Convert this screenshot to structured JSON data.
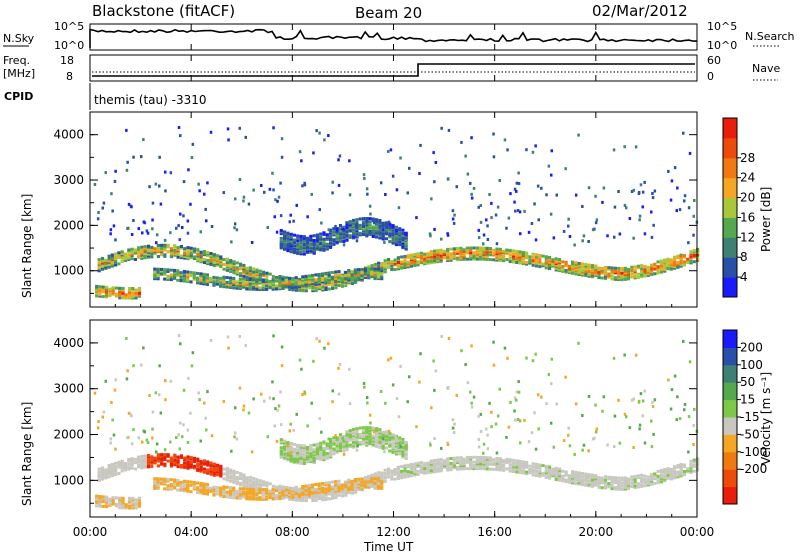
{
  "header": {
    "station": "Blackstone (fitACF)",
    "beam": "Beam 20",
    "date": "02/Mar/2012"
  },
  "top_panels": {
    "nsky_label": "N.Sky",
    "nsearch_label": "N.Search",
    "noise_ticks": [
      "10^5",
      "10^0"
    ],
    "freq_label": "Freq.",
    "freq_unit": "[MHz]",
    "freq_ticks": [
      "18",
      "8"
    ],
    "nave_label": "Nave",
    "nave_ticks": [
      "60",
      "0"
    ],
    "cpid_label": "CPID",
    "cpid_value": "themis (tau) -3310"
  },
  "colors": {
    "power_scale": [
      "#1a1aff",
      "#2a4fa8",
      "#3f7f74",
      "#56a84e",
      "#a8c83a",
      "#f5a623",
      "#f07a10",
      "#ee4a0a",
      "#e81e0a"
    ],
    "velocity_scale": [
      "#1a1aff",
      "#2a4fa8",
      "#3f7f74",
      "#56a84e",
      "#7dc849",
      "#c8c8c0",
      "#f5a623",
      "#f07a10",
      "#ee4a0a",
      "#e81e0a"
    ]
  },
  "chart_data": [
    {
      "type": "heatmap",
      "name": "power",
      "ylabel": "Slant Range [km]",
      "y_ticks": [
        "1000",
        "2000",
        "3000",
        "4000"
      ],
      "ylim": [
        200,
        4500
      ],
      "colorbar_label": "Power [dB]",
      "colorbar_ticks": [
        "4",
        "8",
        "12",
        "16",
        "20",
        "24",
        "28"
      ],
      "x_ticks": [
        "00:00",
        "04:00",
        "08:00",
        "12:00",
        "16:00",
        "20:00",
        "00:00"
      ]
    },
    {
      "type": "heatmap",
      "name": "velocity",
      "ylabel": "Slant Range [km]",
      "y_ticks": [
        "1000",
        "2000",
        "3000",
        "4000"
      ],
      "ylim": [
        200,
        4500
      ],
      "colorbar_label": "Velocity [m s⁻¹]",
      "colorbar_ticks": [
        "200",
        "100",
        "50",
        "15",
        "-15",
        "-50",
        "-100",
        "-200"
      ],
      "x_ticks": [
        "00:00",
        "04:00",
        "08:00",
        "12:00",
        "16:00",
        "20:00",
        "00:00"
      ],
      "xlabel": "Time UT"
    }
  ]
}
